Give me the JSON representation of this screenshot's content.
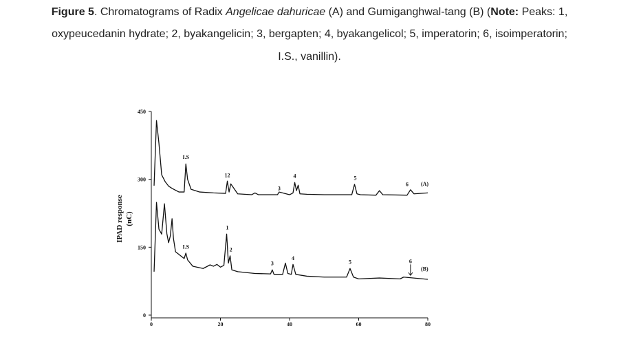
{
  "chart_data": {
    "type": "line",
    "caption": [
      [
        {
          "text": "Figure 5",
          "style": "bold"
        },
        {
          "text": ". Chromatograms of Radix ",
          "style": "normal"
        },
        {
          "text": "Angelicae dahuricae",
          "style": "italic"
        },
        {
          "text": " (A) and Gumiganghwal-tang (B) (",
          "style": "normal"
        },
        {
          "text": "Note:",
          "style": "bold"
        },
        {
          "text": " Peaks: 1,",
          "style": "normal"
        }
      ],
      [
        {
          "text": "oxypeucedanin hydrate; 2, byakangelicin; 3, bergapten; 4, byakangelicol; 5, imperatorin; 6, isoimperatorin;",
          "style": "normal"
        }
      ],
      [
        {
          "text": "I.S., vanillin).",
          "style": "normal"
        }
      ]
    ],
    "y_label": [
      "IPAD response",
      "(nC)"
    ],
    "xlim": [
      0,
      80
    ],
    "xticks": [
      0,
      20,
      40,
      60,
      80
    ],
    "ylim": [
      0,
      450
    ],
    "yticks": [
      0,
      150,
      300,
      450
    ],
    "series": [
      {
        "name": "(A)",
        "color": "#111111",
        "x": [
          0.8,
          1.5,
          2.2,
          3,
          4,
          5,
          6,
          8,
          9.5,
          10,
          10.5,
          11.5,
          14,
          18,
          21.5,
          22,
          22.5,
          23,
          25,
          29,
          30,
          31,
          35,
          36.5,
          37,
          40,
          41,
          41.5,
          42,
          42.5,
          43,
          45,
          50,
          58,
          58.8,
          59.5,
          60.5,
          65,
          66,
          67,
          74,
          75,
          76,
          80
        ],
        "values": [
          286,
          430,
          380,
          310,
          295,
          285,
          280,
          272,
          272,
          334,
          300,
          278,
          272,
          270,
          269,
          296,
          272,
          290,
          268,
          266,
          270,
          266,
          266,
          266,
          272,
          266,
          270,
          293,
          275,
          287,
          268,
          267,
          266,
          266,
          289,
          268,
          266,
          265,
          275,
          266,
          265,
          277,
          268,
          270
        ],
        "annotations": [
          "I.S",
          "12",
          "3",
          "4",
          "5",
          "6"
        ]
      },
      {
        "name": "(B)",
        "color": "#111111",
        "x": [
          0.8,
          1.5,
          2.2,
          3,
          3.8,
          4.5,
          5,
          5.5,
          6,
          6.4,
          7,
          8,
          9.5,
          10,
          10.5,
          12,
          15,
          17,
          18,
          19,
          20,
          21,
          21.8,
          22.3,
          22.8,
          23.3,
          25,
          30,
          34.5,
          35,
          35.5,
          38,
          38.8,
          39.5,
          40.5,
          41,
          41.8,
          45,
          50,
          56.5,
          57.5,
          58.5,
          60,
          66,
          72,
          73,
          80
        ],
        "values": [
          96,
          249,
          190,
          179,
          246,
          180,
          160,
          175,
          213,
          170,
          140,
          134,
          125,
          137,
          122,
          108,
          103,
          111,
          108,
          112,
          106,
          110,
          179,
          115,
          131,
          100,
          96,
          92,
          91,
          100,
          90,
          90,
          115,
          92,
          90,
          112,
          90,
          86,
          84,
          84,
          103,
          84,
          80,
          82,
          80,
          84,
          79
        ],
        "annotations": [
          "I.S",
          "1",
          "2",
          "3",
          "4",
          "5",
          "6"
        ]
      }
    ]
  }
}
